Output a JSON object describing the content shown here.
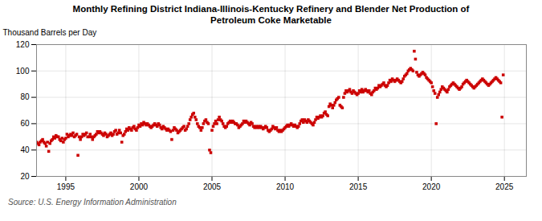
{
  "chart_data": {
    "type": "scatter",
    "title": "Monthly Refining District Indiana-Illinois-Kentucky Refinery and Blender Net Production of\nPetroleum Coke Marketable",
    "ylabel": "Thousand Barrels per Day",
    "annotation": "Source: U.S. Energy Information Administration",
    "color": "#cc0000",
    "marker": "square",
    "grid": true,
    "xlim": [
      1993.0,
      2026.5
    ],
    "ylim": [
      20,
      120
    ],
    "xticks": [
      1995,
      2000,
      2005,
      2010,
      2015,
      2020,
      2025
    ],
    "yticks": [
      20,
      40,
      60,
      80,
      100,
      120
    ],
    "x": [
      1993.0,
      1993.083,
      1993.167,
      1993.25,
      1993.333,
      1993.417,
      1993.5,
      1993.583,
      1993.667,
      1993.75,
      1993.833,
      1993.917,
      1994.0,
      1994.083,
      1994.167,
      1994.25,
      1994.333,
      1994.417,
      1994.5,
      1994.583,
      1994.667,
      1994.75,
      1994.833,
      1994.917,
      1995.0,
      1995.083,
      1995.167,
      1995.25,
      1995.333,
      1995.417,
      1995.5,
      1995.583,
      1995.667,
      1995.75,
      1995.833,
      1995.917,
      1996.0,
      1996.083,
      1996.167,
      1996.25,
      1996.333,
      1996.417,
      1996.5,
      1996.583,
      1996.667,
      1996.75,
      1996.833,
      1996.917,
      1997.0,
      1997.083,
      1997.167,
      1997.25,
      1997.333,
      1997.417,
      1997.5,
      1997.583,
      1997.667,
      1997.75,
      1997.833,
      1997.917,
      1998.0,
      1998.083,
      1998.167,
      1998.25,
      1998.333,
      1998.417,
      1998.5,
      1998.583,
      1998.667,
      1998.75,
      1998.833,
      1998.917,
      1999.0,
      1999.083,
      1999.167,
      1999.25,
      1999.333,
      1999.417,
      1999.5,
      1999.583,
      1999.667,
      1999.75,
      1999.833,
      1999.917,
      2000.0,
      2000.083,
      2000.167,
      2000.25,
      2000.333,
      2000.417,
      2000.5,
      2000.583,
      2000.667,
      2000.75,
      2000.833,
      2000.917,
      2001.0,
      2001.083,
      2001.167,
      2001.25,
      2001.333,
      2001.417,
      2001.5,
      2001.583,
      2001.667,
      2001.75,
      2001.833,
      2001.917,
      2002.0,
      2002.083,
      2002.167,
      2002.25,
      2002.333,
      2002.417,
      2002.5,
      2002.583,
      2002.667,
      2002.75,
      2002.833,
      2002.917,
      2003.0,
      2003.083,
      2003.167,
      2003.25,
      2003.333,
      2003.417,
      2003.5,
      2003.583,
      2003.667,
      2003.75,
      2003.833,
      2003.917,
      2004.0,
      2004.083,
      2004.167,
      2004.25,
      2004.333,
      2004.417,
      2004.5,
      2004.583,
      2004.667,
      2004.75,
      2004.833,
      2004.917,
      2005.0,
      2005.083,
      2005.167,
      2005.25,
      2005.333,
      2005.417,
      2005.5,
      2005.583,
      2005.667,
      2005.75,
      2005.833,
      2005.917,
      2006.0,
      2006.083,
      2006.167,
      2006.25,
      2006.333,
      2006.417,
      2006.5,
      2006.583,
      2006.667,
      2006.75,
      2006.833,
      2006.917,
      2007.0,
      2007.083,
      2007.167,
      2007.25,
      2007.333,
      2007.417,
      2007.5,
      2007.583,
      2007.667,
      2007.75,
      2007.833,
      2007.917,
      2008.0,
      2008.083,
      2008.167,
      2008.25,
      2008.333,
      2008.417,
      2008.5,
      2008.583,
      2008.667,
      2008.75,
      2008.833,
      2008.917,
      2009.0,
      2009.083,
      2009.167,
      2009.25,
      2009.333,
      2009.417,
      2009.5,
      2009.583,
      2009.667,
      2009.75,
      2009.833,
      2009.917,
      2010.0,
      2010.083,
      2010.167,
      2010.25,
      2010.333,
      2010.417,
      2010.5,
      2010.583,
      2010.667,
      2010.75,
      2010.833,
      2010.917,
      2011.0,
      2011.083,
      2011.167,
      2011.25,
      2011.333,
      2011.417,
      2011.5,
      2011.583,
      2011.667,
      2011.75,
      2011.833,
      2011.917,
      2012.0,
      2012.083,
      2012.167,
      2012.25,
      2012.333,
      2012.417,
      2012.5,
      2012.583,
      2012.667,
      2012.75,
      2012.833,
      2012.917,
      2013.0,
      2013.083,
      2013.167,
      2013.25,
      2013.333,
      2013.417,
      2013.5,
      2013.583,
      2013.667,
      2013.75,
      2013.833,
      2013.917,
      2014.0,
      2014.083,
      2014.167,
      2014.25,
      2014.333,
      2014.417,
      2014.5,
      2014.583,
      2014.667,
      2014.75,
      2014.833,
      2014.917,
      2015.0,
      2015.083,
      2015.167,
      2015.25,
      2015.333,
      2015.417,
      2015.5,
      2015.583,
      2015.667,
      2015.75,
      2015.833,
      2015.917,
      2016.0,
      2016.083,
      2016.167,
      2016.25,
      2016.333,
      2016.417,
      2016.5,
      2016.583,
      2016.667,
      2016.75,
      2016.833,
      2016.917,
      2017.0,
      2017.083,
      2017.167,
      2017.25,
      2017.333,
      2017.417,
      2017.5,
      2017.583,
      2017.667,
      2017.75,
      2017.833,
      2017.917,
      2018.0,
      2018.083,
      2018.167,
      2018.25,
      2018.333,
      2018.417,
      2018.5,
      2018.583,
      2018.667,
      2018.75,
      2018.833,
      2018.917,
      2019.0,
      2019.083,
      2019.167,
      2019.25,
      2019.333,
      2019.417,
      2019.5,
      2019.583,
      2019.667,
      2019.75,
      2019.833,
      2019.917,
      2020.0,
      2020.083,
      2020.167,
      2020.25,
      2020.333,
      2020.417,
      2020.5,
      2020.583,
      2020.667,
      2020.75,
      2020.833,
      2020.917,
      2021.0,
      2021.083,
      2021.167,
      2021.25,
      2021.333,
      2021.417,
      2021.5,
      2021.583,
      2021.667,
      2021.75,
      2021.833,
      2021.917,
      2022.0,
      2022.083,
      2022.167,
      2022.25,
      2022.333,
      2022.417,
      2022.5,
      2022.583,
      2022.667,
      2022.75,
      2022.833,
      2022.917,
      2023.0,
      2023.083,
      2023.167,
      2023.25,
      2023.333,
      2023.417,
      2023.5,
      2023.583,
      2023.667,
      2023.75,
      2023.833,
      2023.917,
      2024.0,
      2024.083,
      2024.167,
      2024.25,
      2024.333,
      2024.417,
      2024.5,
      2024.583,
      2024.667,
      2024.75,
      2024.833,
      2024.917
    ],
    "values": [
      46,
      45,
      44,
      46,
      47,
      48,
      46,
      45,
      43,
      46,
      39,
      45,
      47,
      48,
      50,
      49,
      51,
      50,
      50,
      48,
      47,
      49,
      46,
      48,
      49,
      52,
      50,
      51,
      52,
      51,
      53,
      50,
      51,
      52,
      36,
      50,
      48,
      50,
      52,
      51,
      52,
      53,
      50,
      50,
      52,
      50,
      48,
      50,
      51,
      52,
      54,
      53,
      54,
      53,
      52,
      51,
      53,
      52,
      50,
      51,
      52,
      53,
      51,
      52,
      54,
      55,
      52,
      53,
      55,
      53,
      46,
      51,
      52,
      54,
      56,
      55,
      57,
      56,
      55,
      57,
      58,
      56,
      55,
      57,
      59,
      58,
      60,
      59,
      61,
      60,
      59,
      60,
      59,
      58,
      57,
      58,
      59,
      60,
      59,
      58,
      60,
      59,
      57,
      56,
      58,
      57,
      56,
      55,
      56,
      55,
      54,
      48,
      55,
      57,
      56,
      55,
      53,
      54,
      55,
      56,
      57,
      58,
      55,
      56,
      58,
      60,
      63,
      65,
      67,
      68,
      65,
      63,
      60,
      58,
      57,
      55,
      57,
      60,
      62,
      63,
      61,
      60,
      40,
      38,
      55,
      58,
      60,
      62,
      60,
      63,
      65,
      63,
      62,
      60,
      58,
      57,
      58,
      60,
      61,
      62,
      61,
      62,
      61,
      60,
      60,
      59,
      57,
      58,
      59,
      60,
      62,
      61,
      62,
      61,
      60,
      59,
      61,
      60,
      58,
      57,
      58,
      57,
      58,
      57,
      58,
      57,
      56,
      57,
      58,
      57,
      55,
      54,
      55,
      56,
      58,
      57,
      56,
      57,
      55,
      54,
      55,
      54,
      55,
      56,
      57,
      58,
      59,
      58,
      59,
      60,
      59,
      58,
      59,
      58,
      57,
      58,
      60,
      62,
      63,
      61,
      63,
      62,
      61,
      63,
      62,
      61,
      60,
      59,
      61,
      63,
      65,
      64,
      65,
      66,
      65,
      66,
      68,
      69,
      67,
      66,
      73,
      75,
      74,
      72,
      74,
      76,
      78,
      79,
      80,
      74,
      73,
      72,
      80,
      83,
      85,
      84,
      85,
      86,
      84,
      83,
      85,
      84,
      83,
      82,
      83,
      85,
      84,
      86,
      84,
      85,
      86,
      85,
      84,
      85,
      83,
      82,
      84,
      85,
      87,
      86,
      87,
      89,
      88,
      89,
      90,
      91,
      89,
      88,
      89,
      91,
      93,
      92,
      94,
      93,
      92,
      93,
      94,
      93,
      92,
      91,
      92,
      94,
      96,
      97,
      98,
      100,
      101,
      102,
      101,
      100,
      115,
      109,
      99,
      97,
      96,
      97,
      98,
      99,
      98,
      97,
      95,
      94,
      93,
      92,
      91,
      88,
      85,
      83,
      60,
      80,
      82,
      84,
      86,
      88,
      87,
      86,
      85,
      84,
      86,
      88,
      89,
      90,
      91,
      90,
      89,
      88,
      87,
      86,
      87,
      88,
      90,
      91,
      92,
      93,
      92,
      91,
      90,
      89,
      88,
      87,
      88,
      89,
      90,
      91,
      92,
      93,
      94,
      93,
      92,
      91,
      90,
      89,
      90,
      91,
      92,
      93,
      94,
      95,
      94,
      93,
      92,
      91,
      65,
      97
    ]
  }
}
